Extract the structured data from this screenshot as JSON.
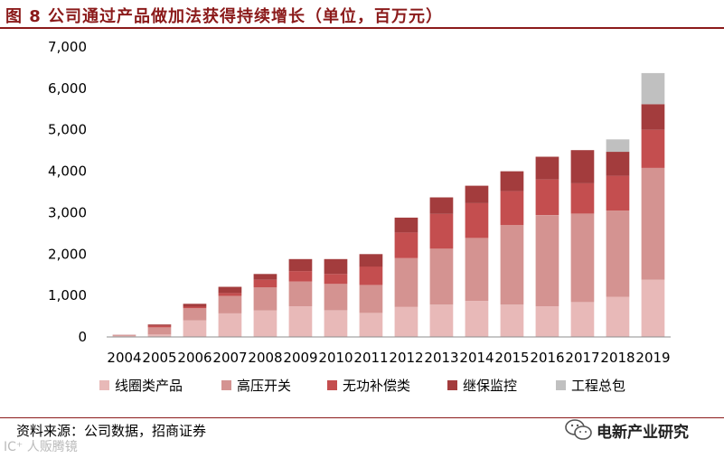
{
  "header": {
    "title": "图 8  公司通过产品做加法获得持续增长（单位，百万元）"
  },
  "chart_data": {
    "type": "bar",
    "stacked": true,
    "title": "图 8  公司通过产品做加法获得持续增长（单位，百万元）",
    "xlabel": "",
    "ylabel": "",
    "ylim": [
      0,
      7000
    ],
    "yticks": [
      0,
      1000,
      2000,
      3000,
      4000,
      5000,
      6000,
      7000
    ],
    "ytick_labels": [
      "0",
      "1,000",
      "2,000",
      "3,000",
      "4,000",
      "5,000",
      "6,000",
      "7,000"
    ],
    "categories": [
      "2004",
      "2005",
      "2006",
      "2007",
      "2008",
      "2009",
      "2010",
      "2011",
      "2012",
      "2013",
      "2014",
      "2015",
      "2016",
      "2017",
      "2018",
      "2019"
    ],
    "grid": false,
    "legend_position": "bottom",
    "series": [
      {
        "name": "线圈类产品",
        "color": "#e8b9b8",
        "values": [
          20,
          60,
          400,
          570,
          640,
          740,
          640,
          580,
          730,
          780,
          870,
          780,
          740,
          840,
          970,
          1380
        ]
      },
      {
        "name": "高压开关",
        "color": "#d49391",
        "values": [
          20,
          170,
          290,
          420,
          560,
          600,
          640,
          670,
          1170,
          1350,
          1520,
          1920,
          2200,
          2140,
          2080,
          2700
        ]
      },
      {
        "name": "无功补偿类",
        "color": "#c44e4f",
        "values": [
          5,
          40,
          40,
          70,
          180,
          250,
          240,
          450,
          620,
          840,
          840,
          820,
          860,
          730,
          840,
          920
        ]
      },
      {
        "name": "继保监控",
        "color": "#a33c3d",
        "values": [
          5,
          30,
          70,
          150,
          140,
          290,
          360,
          300,
          360,
          400,
          420,
          480,
          550,
          800,
          580,
          620
        ]
      },
      {
        "name": "工程总包",
        "color": "#c0c0c0",
        "values": [
          0,
          0,
          0,
          0,
          0,
          0,
          0,
          0,
          0,
          0,
          0,
          0,
          0,
          0,
          300,
          750
        ]
      }
    ]
  },
  "footer": {
    "source": "资料来源：公司数据，招商证券",
    "brand": "电新产业研究",
    "watermark": "IC⁺ 人贩腾镜"
  }
}
